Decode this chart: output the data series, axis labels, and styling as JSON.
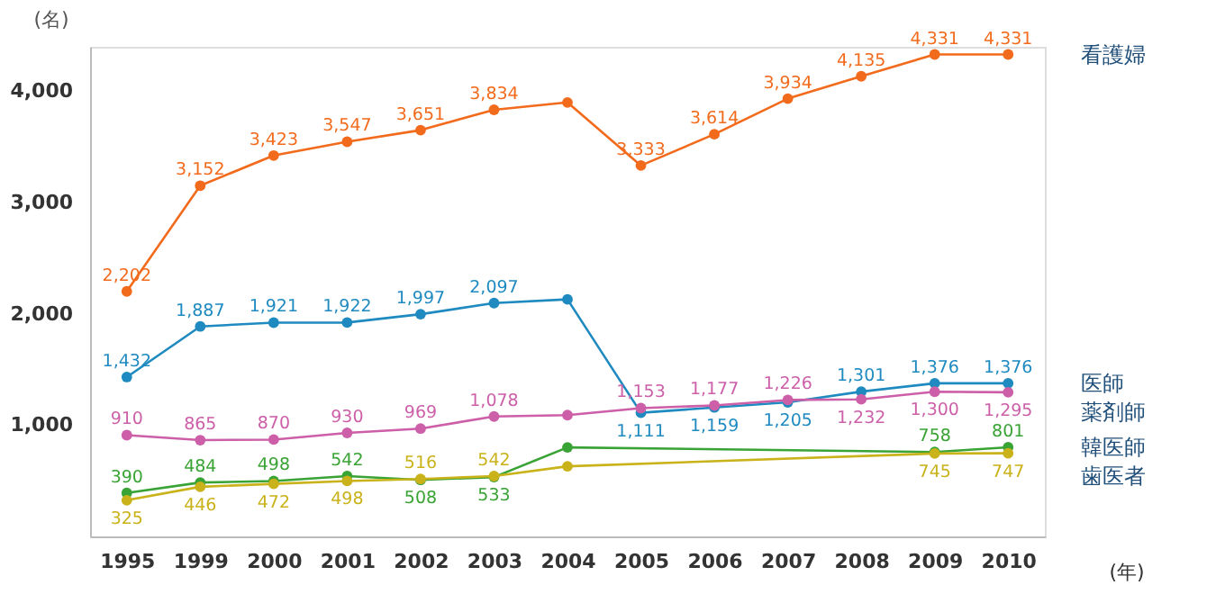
{
  "chart_data": {
    "type": "line",
    "categories": [
      "1995",
      "1999",
      "2000",
      "2001",
      "2002",
      "2003",
      "2004",
      "2005",
      "2006",
      "2007",
      "2008",
      "2009",
      "2010"
    ],
    "ylabel": "(名)",
    "xlabel": "(年)",
    "ylim": [
      0,
      4400
    ],
    "yticks": [
      {
        "value": 1000,
        "label": "1,000"
      },
      {
        "value": 2000,
        "label": "2,000"
      },
      {
        "value": 3000,
        "label": "3,000"
      },
      {
        "value": 4000,
        "label": "4,000"
      }
    ],
    "marker": "circle",
    "line_style": "solid",
    "series": [
      {
        "name": "看護婦",
        "color": "#f26b1d",
        "values": [
          2202,
          3152,
          3423,
          3547,
          3651,
          3834,
          3900,
          3333,
          3614,
          3934,
          4135,
          4331,
          4331
        ],
        "value_labels": [
          "2,202",
          "3,152",
          "3,423",
          "3,547",
          "3,651",
          "3,834",
          null,
          "3,333",
          "3,614",
          "3,934",
          "4,135",
          "4,331",
          "4,331"
        ]
      },
      {
        "name": "医師",
        "color": "#1f8ac0",
        "values": [
          1432,
          1887,
          1921,
          1922,
          1997,
          2097,
          2130,
          1111,
          1159,
          1205,
          1301,
          1376,
          1376
        ],
        "value_labels": [
          "1,432",
          "1,887",
          "1,921",
          "1,922",
          "1,997",
          "2,097",
          null,
          "1,111",
          "1,159",
          "1,205",
          "1,301",
          "1,376",
          "1,376"
        ]
      },
      {
        "name": "薬剤師",
        "color": "#cc5fa8",
        "values": [
          910,
          865,
          870,
          930,
          969,
          1078,
          1090,
          1153,
          1177,
          1226,
          1232,
          1300,
          1295
        ],
        "value_labels": [
          "910",
          "865",
          "870",
          "930",
          "969",
          "1,078",
          null,
          "1,153",
          "1,177",
          "1,226",
          "1,232",
          "1,300",
          "1,295"
        ]
      },
      {
        "name": "韓医師",
        "color": "#3aa335",
        "values": [
          390,
          484,
          498,
          542,
          508,
          533,
          800,
          null,
          null,
          null,
          null,
          758,
          801
        ],
        "value_labels": [
          "390",
          "484",
          "498",
          "542",
          "508",
          "533",
          null,
          null,
          null,
          null,
          null,
          "758",
          "801"
        ]
      },
      {
        "name": "歯医者",
        "color": "#c9b21a",
        "values": [
          325,
          446,
          472,
          498,
          516,
          542,
          630,
          null,
          null,
          null,
          null,
          745,
          747
        ],
        "value_labels": [
          "325",
          "446",
          "472",
          "498",
          "516",
          "542",
          null,
          null,
          null,
          null,
          null,
          "745",
          "747"
        ]
      }
    ]
  }
}
